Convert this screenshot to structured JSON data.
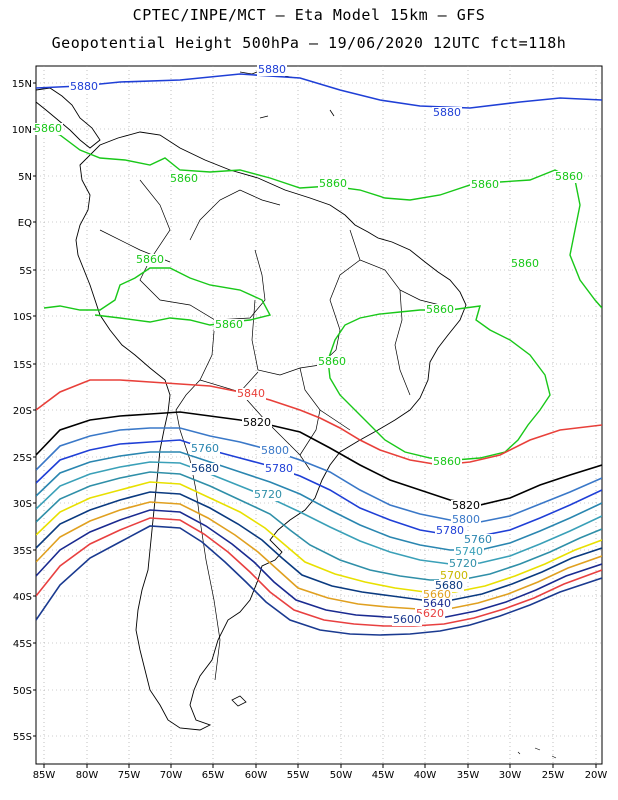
{
  "header": {
    "title_line1": "CPTEC/INPE/MCT –  Eta Model 15km – GFS",
    "title_line2": "Geopotential Height 500hPa – 19/06/2020 12UTC fct=118h"
  },
  "map": {
    "lat_labels": [
      "15N",
      "10N",
      "5N",
      "EQ",
      "5S",
      "10S",
      "15S",
      "20S",
      "25S",
      "30S",
      "35S",
      "40S",
      "45S",
      "50S",
      "55S"
    ],
    "lon_labels": [
      "85W",
      "80W",
      "75W",
      "70W",
      "65W",
      "60W",
      "55W",
      "50W",
      "45W",
      "40W",
      "35W",
      "30W",
      "25W",
      "20W"
    ],
    "contours": [
      {
        "value": "5880",
        "color": "#1f3fd6"
      },
      {
        "value": "5860",
        "color": "#19c819"
      },
      {
        "value": "5840",
        "color": "#e8403a"
      },
      {
        "value": "5820",
        "color": "#000000"
      },
      {
        "value": "5800",
        "color": "#3a78c8"
      },
      {
        "value": "5780",
        "color": "#1f3fd6"
      },
      {
        "value": "5760",
        "color": "#2a86b0"
      },
      {
        "value": "5740",
        "color": "#3aa0b8"
      },
      {
        "value": "5720",
        "color": "#2f8fa8"
      },
      {
        "value": "5700",
        "color": "#e8e000"
      },
      {
        "value": "5680",
        "color": "#0a3a80"
      },
      {
        "value": "5660",
        "color": "#e0a020"
      },
      {
        "value": "5640",
        "color": "#1a2a90"
      },
      {
        "value": "5620",
        "color": "#e84040"
      },
      {
        "value": "5600",
        "color": "#1a3a90"
      }
    ],
    "contour_labels": [
      {
        "text": "5880",
        "color": "#1f3fd6"
      },
      {
        "text": "5880",
        "color": "#1f3fd6"
      },
      {
        "text": "5880",
        "color": "#1f3fd6"
      },
      {
        "text": "5860",
        "color": "#19c819"
      },
      {
        "text": "5860",
        "color": "#19c819"
      },
      {
        "text": "5860",
        "color": "#19c819"
      },
      {
        "text": "5860",
        "color": "#19c819"
      },
      {
        "text": "5860",
        "color": "#19c819"
      },
      {
        "text": "5860",
        "color": "#19c819"
      },
      {
        "text": "5860",
        "color": "#19c819"
      },
      {
        "text": "5860",
        "color": "#19c819"
      },
      {
        "text": "5860",
        "color": "#19c819"
      },
      {
        "text": "5860",
        "color": "#19c819"
      },
      {
        "text": "5860",
        "color": "#19c819"
      },
      {
        "text": "5840",
        "color": "#e8403a"
      },
      {
        "text": "5820",
        "color": "#000000"
      },
      {
        "text": "5820",
        "color": "#000000"
      },
      {
        "text": "5800",
        "color": "#3a78c8"
      },
      {
        "text": "5800",
        "color": "#3a78c8"
      },
      {
        "text": "5780",
        "color": "#1f3fd6"
      },
      {
        "text": "5780",
        "color": "#1f3fd6"
      },
      {
        "text": "5760",
        "color": "#2a86b0"
      },
      {
        "text": "5760",
        "color": "#2a86b0"
      },
      {
        "text": "5740",
        "color": "#3aa0b8"
      },
      {
        "text": "5720",
        "color": "#2f8fa8"
      },
      {
        "text": "5720",
        "color": "#2f8fa8"
      },
      {
        "text": "5700",
        "color": "#c8b800"
      },
      {
        "text": "5680",
        "color": "#0a3a80"
      },
      {
        "text": "5680",
        "color": "#0a3a80"
      },
      {
        "text": "5660",
        "color": "#e0a020"
      },
      {
        "text": "5640",
        "color": "#1a2a90"
      },
      {
        "text": "5620",
        "color": "#e84040"
      },
      {
        "text": "5600",
        "color": "#1a3a90"
      }
    ]
  }
}
